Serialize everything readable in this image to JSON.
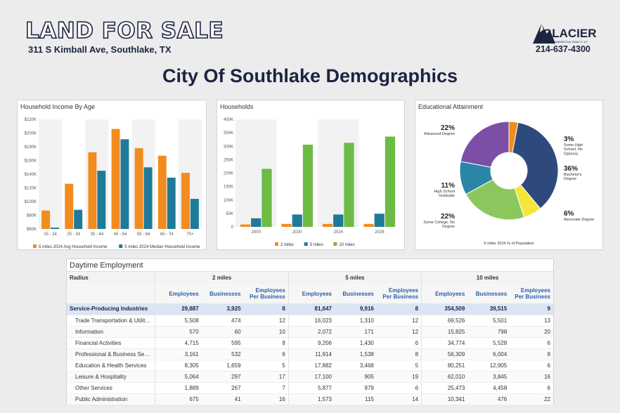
{
  "header": {
    "title": "LAND FOR SALE",
    "address": "311 S Kimball Ave, Southlake, TX",
    "logo_text": "GLACIER",
    "logo_sub": "COMMERCIAL REALTY, LP",
    "phone": "214-637-4300",
    "main_title": "City Of Southlake Demographics"
  },
  "colors": {
    "orange": "#f28c1e",
    "teal": "#1f7a99",
    "green": "#6dbb45",
    "navy": "#1c2440"
  },
  "chart_data": [
    {
      "type": "bar",
      "title": "Household Income By Age",
      "categories": [
        "15 - 24",
        "25 - 34",
        "35 - 44",
        "45 - 54",
        "55 - 64",
        "65 - 74",
        "75+"
      ],
      "yticks": [
        "$60K",
        "$80K",
        "$100K",
        "$120K",
        "$140K",
        "$160K",
        "$180K",
        "$200K",
        "$220K"
      ],
      "ylim": [
        60000,
        220000
      ],
      "series": [
        {
          "name": "5 miles 2024 Avg Household Income",
          "color": "#f28c1e",
          "values": [
            87000,
            126000,
            172000,
            206000,
            178000,
            167000,
            142000
          ]
        },
        {
          "name": "5 miles 2024 Median Household Income",
          "color": "#1f7a99",
          "values": [
            62000,
            88000,
            145000,
            191000,
            150000,
            135000,
            104000
          ]
        }
      ],
      "legend": "bottom"
    },
    {
      "type": "bar",
      "title": "Households",
      "categories": [
        "2000",
        "2020",
        "2024",
        "2029"
      ],
      "yticks": [
        "0",
        "50K",
        "100K",
        "150K",
        "200K",
        "250K",
        "300K",
        "350K",
        "400K"
      ],
      "ylim": [
        0,
        400000
      ],
      "series": [
        {
          "name": "2 miles",
          "color": "#f28c1e",
          "values": [
            9000,
            11000,
            11000,
            11000
          ]
        },
        {
          "name": "5 miles",
          "color": "#1f7a99",
          "values": [
            32000,
            46000,
            46000,
            49000
          ]
        },
        {
          "name": "10 miles",
          "color": "#6dbb45",
          "values": [
            216000,
            306000,
            313000,
            336000
          ]
        }
      ],
      "legend": "bottom"
    },
    {
      "type": "pie",
      "title": "Educational Attainment",
      "caption": "5 miles 2024 % of Population",
      "slices": [
        {
          "label": "Some High School, No Diploma",
          "value": 3,
          "pct": "3%",
          "color": "#f28c1e"
        },
        {
          "label": "Bachelor's Degree",
          "value": 36,
          "pct": "36%",
          "color": "#2e4a7d"
        },
        {
          "label": "Associate Degree",
          "value": 6,
          "pct": "6%",
          "color": "#f5e63a"
        },
        {
          "label": "Some College, No Degree",
          "value": 22,
          "pct": "22%",
          "color": "#8cc75e"
        },
        {
          "label": "High School Graduate",
          "value": 11,
          "pct": "11%",
          "color": "#2a86a6"
        },
        {
          "label": "Advanced Degree",
          "value": 22,
          "pct": "22%",
          "color": "#7b4fa6"
        }
      ]
    }
  ],
  "employment": {
    "title": "Daytime Employment",
    "radius_label": "Radius",
    "radii": [
      "2 miles",
      "5 miles",
      "10 miles"
    ],
    "col_labels": [
      "Employees",
      "Businesses",
      "Employees Per Business"
    ],
    "total": {
      "label": "Service-Producing Industries",
      "values": [
        "29,887",
        "3,925",
        "8",
        "81,647",
        "9,916",
        "8",
        "354,509",
        "39,515",
        "9"
      ]
    },
    "rows": [
      {
        "label": "Trade Transportation & Utilit…",
        "values": [
          "5,508",
          "474",
          "12",
          "16,023",
          "1,310",
          "12",
          "69,526",
          "5,501",
          "13"
        ]
      },
      {
        "label": "Information",
        "values": [
          "570",
          "60",
          "10",
          "2,072",
          "171",
          "12",
          "15,825",
          "798",
          "20"
        ]
      },
      {
        "label": "Financial Activities",
        "values": [
          "4,715",
          "595",
          "8",
          "9,206",
          "1,430",
          "6",
          "34,774",
          "5,528",
          "6"
        ]
      },
      {
        "label": "Professional & Business Se…",
        "values": [
          "3,161",
          "532",
          "6",
          "11,914",
          "1,538",
          "8",
          "56,309",
          "6,004",
          "9"
        ]
      },
      {
        "label": "Education & Health Services",
        "values": [
          "8,305",
          "1,659",
          "5",
          "17,882",
          "3,468",
          "5",
          "80,251",
          "12,905",
          "6"
        ]
      },
      {
        "label": "Leisure & Hospitality",
        "values": [
          "5,064",
          "297",
          "17",
          "17,100",
          "905",
          "19",
          "62,010",
          "3,845",
          "16"
        ]
      },
      {
        "label": "Other Services",
        "values": [
          "1,889",
          "267",
          "7",
          "5,877",
          "979",
          "6",
          "25,473",
          "4,458",
          "6"
        ]
      },
      {
        "label": "Public Administration",
        "values": [
          "675",
          "41",
          "16",
          "1,573",
          "115",
          "14",
          "10,341",
          "476",
          "22"
        ]
      }
    ]
  }
}
